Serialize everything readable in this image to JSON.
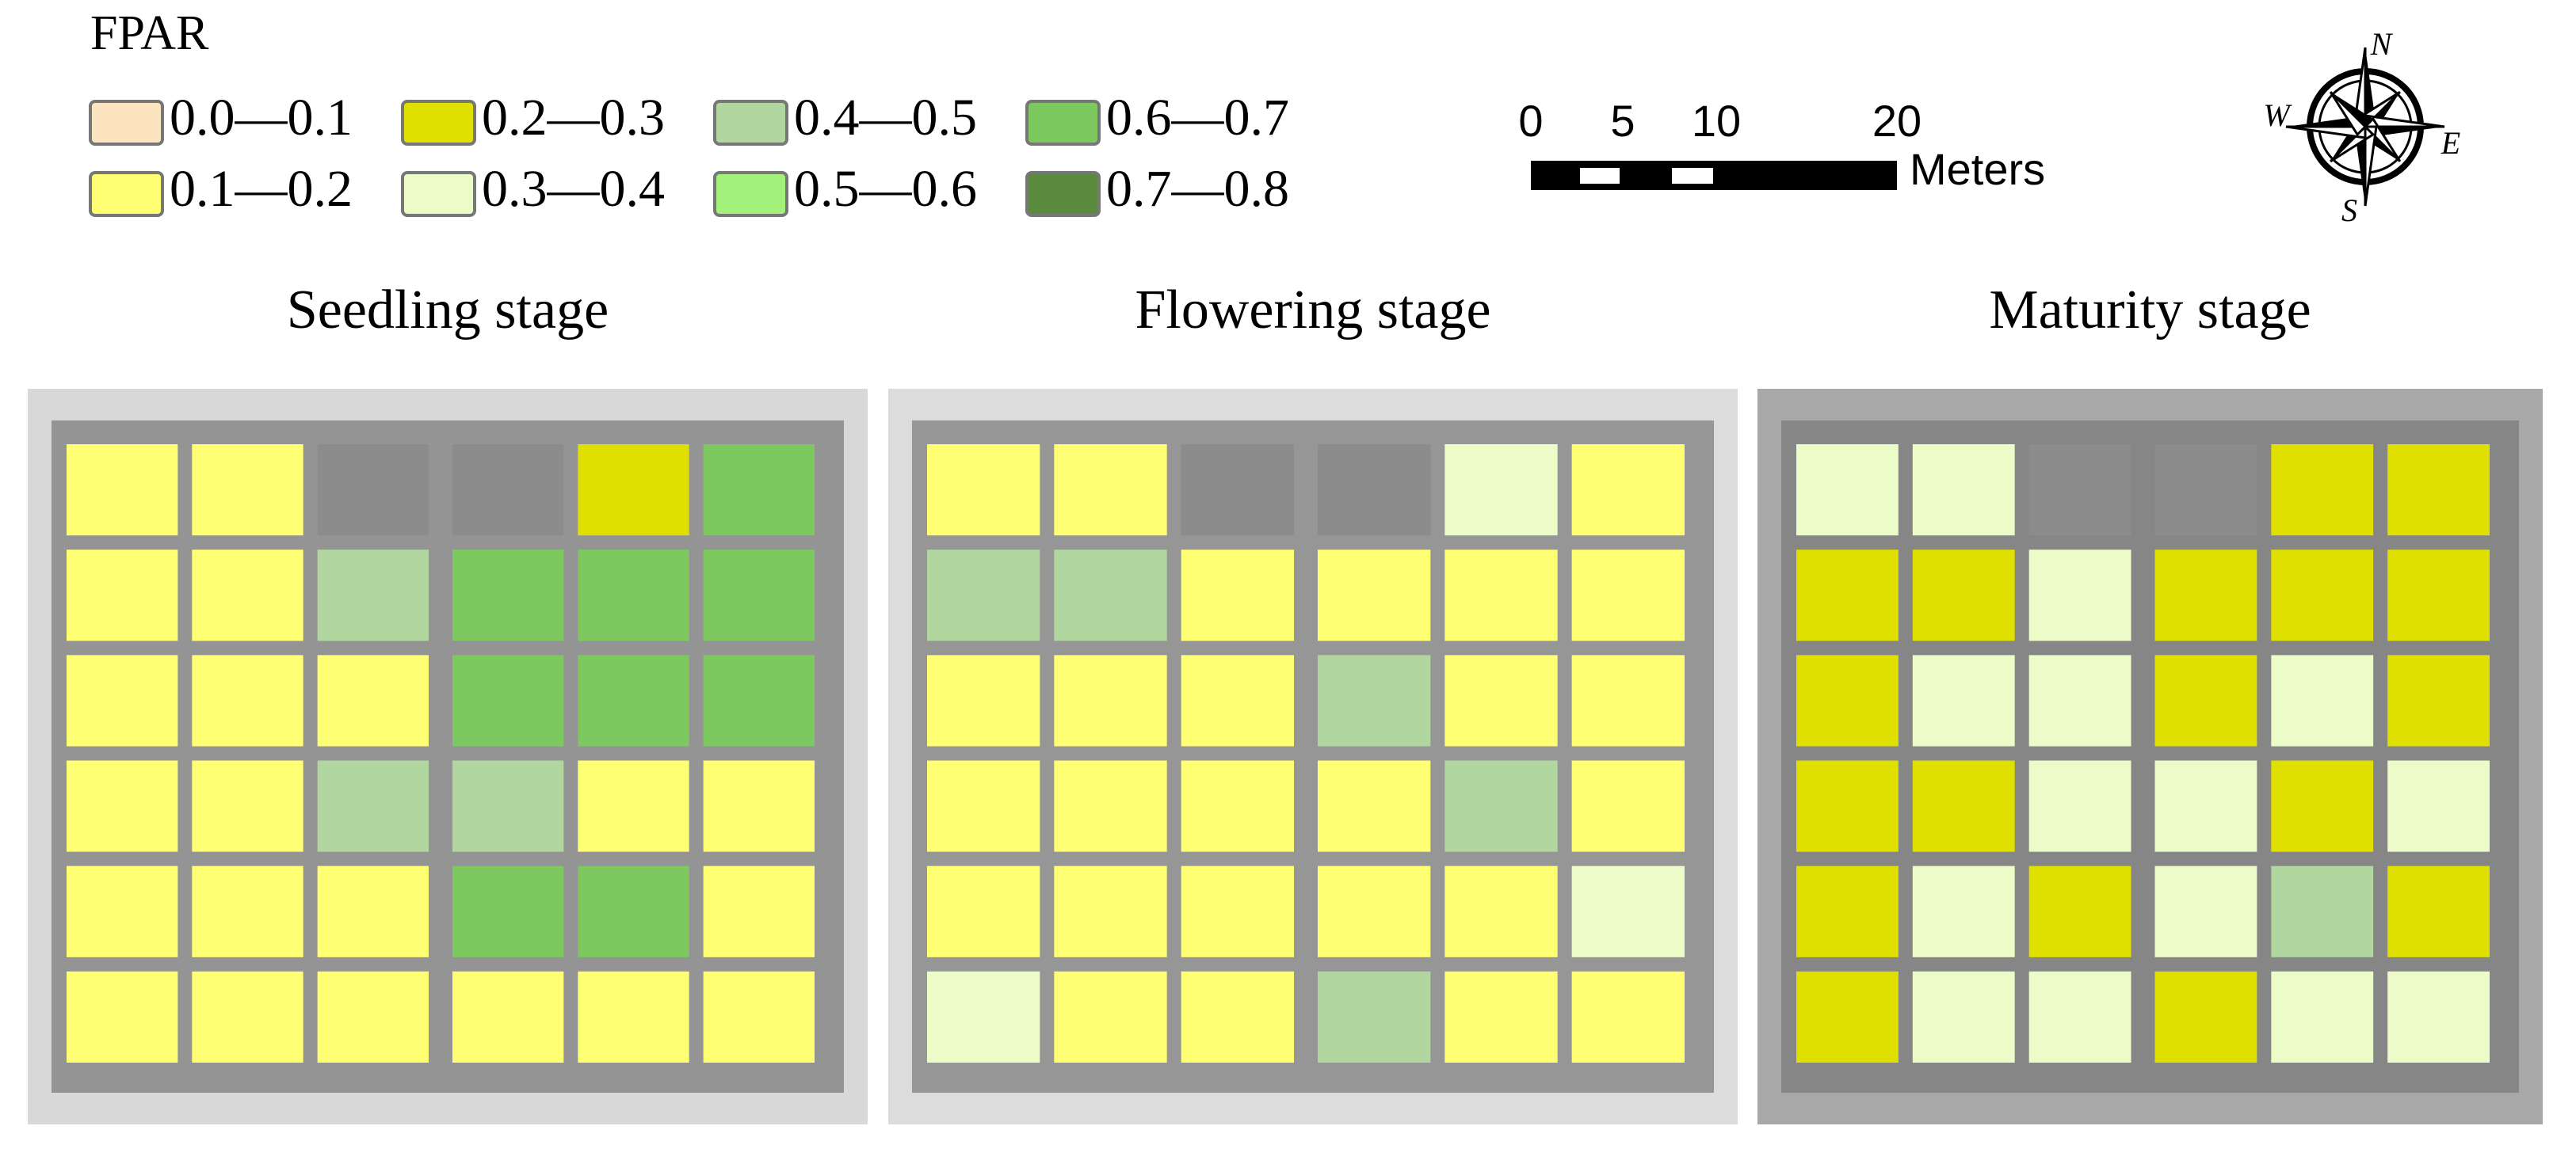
{
  "legend": {
    "title": "FPAR",
    "items": [
      {
        "label": "0.0—0.1",
        "color": "#fde4c0"
      },
      {
        "label": "0.1—0.2",
        "color": "#ffff73"
      },
      {
        "label": "0.2—0.3",
        "color": "#e0e000"
      },
      {
        "label": "0.3—0.4",
        "color": "#ecfcc8"
      },
      {
        "label": "0.4—0.5",
        "color": "#b2d6a0"
      },
      {
        "label": "0.5—0.6",
        "color": "#a3f07a"
      },
      {
        "label": "0.6—0.7",
        "color": "#7ec860"
      },
      {
        "label": "0.7—0.8",
        "color": "#5a8a3e"
      }
    ]
  },
  "scale_bar": {
    "ticks": [
      "0",
      "5",
      "10",
      "20"
    ],
    "unit": "Meters"
  },
  "compass": {
    "n": "N",
    "e": "E",
    "s": "S",
    "w": "W"
  },
  "panels": [
    {
      "title": "Seedling stage"
    },
    {
      "title": "Flowering stage"
    },
    {
      "title": "Maturity stage"
    }
  ]
}
